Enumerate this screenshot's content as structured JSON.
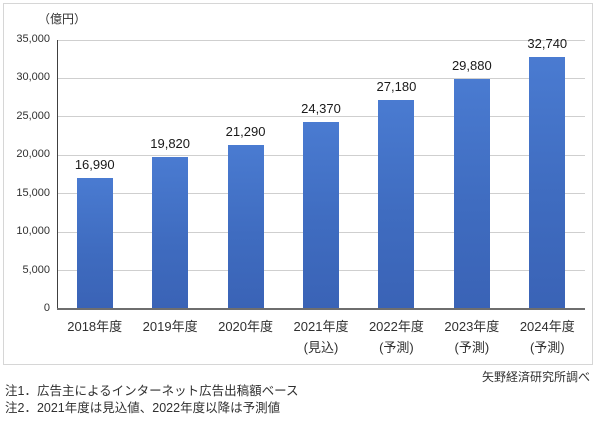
{
  "chart_data": {
    "type": "bar",
    "title": "",
    "unit_label": "（億円）",
    "categories": [
      "2018年度",
      "2019年度",
      "2020年度",
      "2021年度",
      "2022年度",
      "2023年度",
      "2024年度"
    ],
    "category_sublabels": [
      "",
      "",
      "",
      "(見込)",
      "(予測)",
      "(予測)",
      "(予測)"
    ],
    "values": [
      16990,
      19820,
      21290,
      24370,
      27180,
      29880,
      32740
    ],
    "value_labels": [
      "16,990",
      "19,820",
      "21,290",
      "24,370",
      "27,180",
      "29,880",
      "32,740"
    ],
    "xlabel": "",
    "ylabel": "（億円）",
    "ylim": [
      0,
      35000
    ],
    "ytick_interval": 5000,
    "ytick_labels": [
      "0",
      "5,000",
      "10,000",
      "15,000",
      "20,000",
      "25,000",
      "30,000",
      "35,000"
    ],
    "grid": true,
    "legend": false,
    "bar_color": "#4472c4"
  },
  "notes": [
    "注1．広告主によるインターネット広告出稿額ベース",
    "注2．2021年度は見込値、2022年度以降は予測値"
  ],
  "credit": "矢野経済研究所調べ",
  "colors": {
    "bar": "#4472c4",
    "gridline": "#cfcfcf",
    "y_axis": "#404040",
    "x_axis": "#6e6e6e",
    "border": "#d6d6d6",
    "text": "#303030"
  }
}
